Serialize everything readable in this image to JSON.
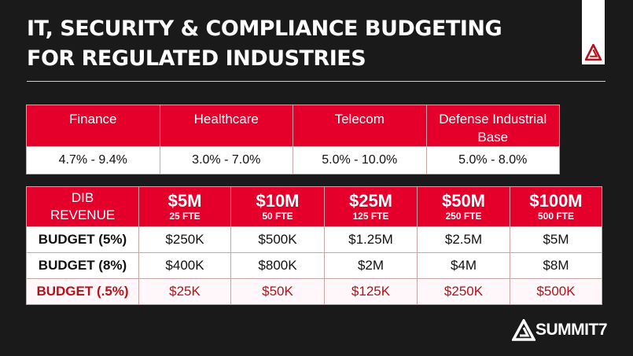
{
  "title": {
    "line1": "IT, SECURITY & COMPLIANCE BUDGETING",
    "line2": "FOR REGULATED INDUSTRIES"
  },
  "industries": {
    "headers": [
      "Finance",
      "Healthcare",
      "Telecom",
      "Defense Industrial Base"
    ],
    "values": [
      "4.7% - 9.4%",
      "3.0% - 7.0%",
      "5.0% - 10.0%",
      "5.0% - 8.0%"
    ]
  },
  "dib": {
    "label": "DIB REVENUE",
    "columns": [
      {
        "revenue": "$5M",
        "fte": "25 FTE"
      },
      {
        "revenue": "$10M",
        "fte": "50 FTE"
      },
      {
        "revenue": "$25M",
        "fte": "125 FTE"
      },
      {
        "revenue": "$50M",
        "fte": "250 FTE"
      },
      {
        "revenue": "$100M",
        "fte": "500 FTE"
      }
    ],
    "rows": [
      {
        "label": "BUDGET (5%)",
        "values": [
          "$250K",
          "$500K",
          "$1.25M",
          "$2.5M",
          "$5M"
        ]
      },
      {
        "label": "BUDGET (8%)",
        "values": [
          "$400K",
          "$800K",
          "$2M",
          "$4M",
          "$8M"
        ]
      },
      {
        "label": "BUDGET (.5%)",
        "values": [
          "$25K",
          "$50K",
          "$125K",
          "$250K",
          "$500K"
        ]
      }
    ]
  },
  "brand": {
    "name": "SUMMIT7",
    "accent": "#e4002b"
  }
}
